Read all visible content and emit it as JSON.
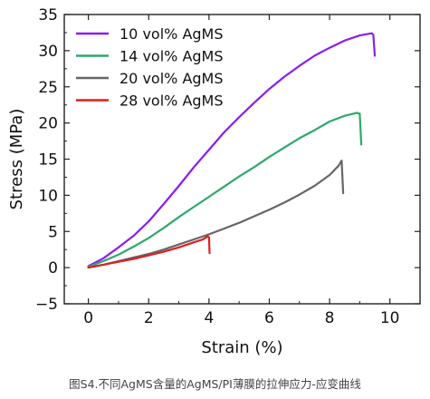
{
  "caption": "图S4.不同AgMS含量的AgMS/PI薄膜的拉伸应力-应变曲线",
  "chart_data": {
    "type": "line",
    "title": "",
    "xlabel": "Strain (%)",
    "ylabel": "Stress (MPa)",
    "xlim": [
      -0.8,
      11.0
    ],
    "ylim": [
      -5,
      35
    ],
    "xticks": [
      0,
      2,
      4,
      6,
      8,
      10
    ],
    "xtick_labels": [
      "0",
      "2",
      "4",
      "6",
      "8",
      "10"
    ],
    "yticks": [
      -5,
      0,
      5,
      10,
      15,
      20,
      25,
      30,
      35
    ],
    "ytick_labels": [
      "−5",
      "0",
      "5",
      "10",
      "15",
      "20",
      "25",
      "30",
      "35"
    ],
    "grid": false,
    "legend": "top-left",
    "series": [
      {
        "name": "10 vol% AgMS",
        "color": "#8B1CF0",
        "x": [
          0,
          0.5,
          1,
          1.5,
          2,
          2.5,
          3,
          3.5,
          4,
          4.5,
          5,
          5.5,
          6,
          6.5,
          7,
          7.5,
          8,
          8.5,
          9,
          9.4,
          9.45,
          9.5
        ],
        "y": [
          0.2,
          1.3,
          2.8,
          4.4,
          6.4,
          8.8,
          11.3,
          13.9,
          16.3,
          18.7,
          20.8,
          22.8,
          24.7,
          26.4,
          27.9,
          29.3,
          30.4,
          31.4,
          32.1,
          32.4,
          32.2,
          29.3
        ]
      },
      {
        "name": "14 vol% AgMS",
        "color": "#2EA86B",
        "x": [
          0,
          0.5,
          1,
          1.5,
          2,
          2.5,
          3,
          3.5,
          4,
          4.5,
          5,
          5.5,
          6,
          6.5,
          7,
          7.5,
          8,
          8.5,
          8.9,
          9.0,
          9.05
        ],
        "y": [
          0.1,
          0.9,
          1.8,
          2.9,
          4.1,
          5.5,
          7.0,
          8.4,
          9.8,
          11.2,
          12.6,
          13.9,
          15.3,
          16.6,
          17.9,
          19.0,
          20.2,
          21.0,
          21.4,
          21.3,
          17.0
        ]
      },
      {
        "name": "20 vol% AgMS",
        "color": "#666666",
        "x": [
          0,
          0.5,
          1,
          1.5,
          2,
          2.5,
          3,
          3.5,
          4,
          4.5,
          5,
          5.5,
          6,
          6.5,
          7,
          7.5,
          8,
          8.3,
          8.4,
          8.45
        ],
        "y": [
          0,
          0.4,
          0.9,
          1.4,
          1.9,
          2.5,
          3.2,
          3.9,
          4.6,
          5.4,
          6.2,
          7.1,
          8.0,
          9.0,
          10.1,
          11.3,
          12.8,
          14.1,
          14.8,
          10.3
        ]
      },
      {
        "name": "28 vol% AgMS",
        "color": "#E01E1E",
        "x": [
          0,
          0.5,
          1,
          1.5,
          2,
          2.5,
          3,
          3.5,
          3.8,
          3.95,
          4.0,
          4.02
        ],
        "y": [
          0,
          0.4,
          0.8,
          1.2,
          1.7,
          2.2,
          2.8,
          3.5,
          3.9,
          4.3,
          4.2,
          2.0
        ]
      }
    ]
  }
}
